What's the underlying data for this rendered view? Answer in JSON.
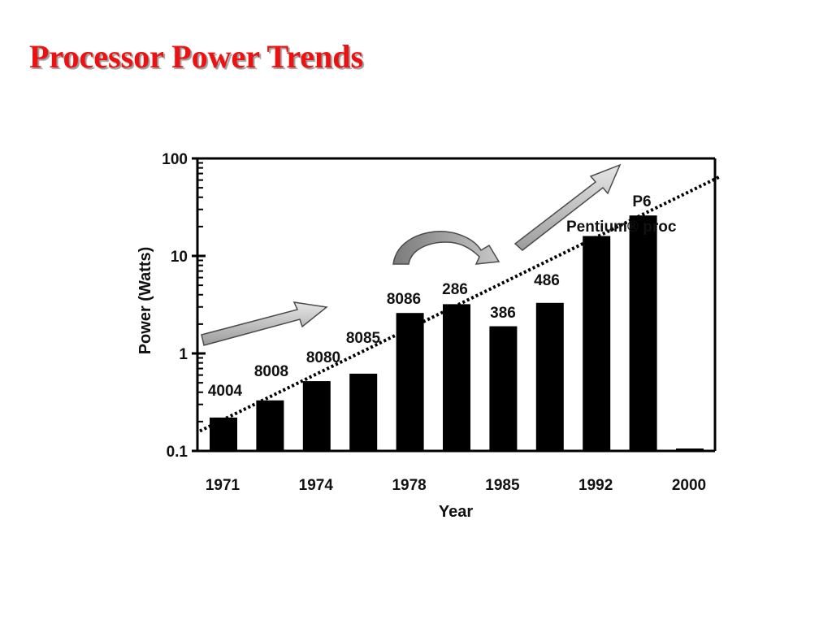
{
  "slide": {
    "title": "Processor Power Trends",
    "title_color": "#ee1111"
  },
  "chart_data": {
    "type": "bar",
    "xlabel": "Year",
    "ylabel": "Power (Watts)",
    "yscale": "log",
    "ylim": [
      0.1,
      100
    ],
    "y_ticks": [
      {
        "value": 100,
        "label": "100"
      },
      {
        "value": 10,
        "label": "10"
      },
      {
        "value": 1,
        "label": "1"
      },
      {
        "value": 0.1,
        "label": "0.1"
      }
    ],
    "x_tick_labels": [
      "1971",
      "1974",
      "1978",
      "1985",
      "1992",
      "2000"
    ],
    "bars": [
      {
        "label": "4004",
        "value": 0.22
      },
      {
        "label": "8008",
        "value": 0.33
      },
      {
        "label": "8080",
        "value": 0.52
      },
      {
        "label": "8085",
        "value": 0.62
      },
      {
        "label": "8086",
        "value": 2.6
      },
      {
        "label": "286",
        "value": 3.2
      },
      {
        "label": "386",
        "value": 1.9
      },
      {
        "label": "486",
        "value": 3.3
      },
      {
        "label": "Pentium® proc",
        "value": 16
      },
      {
        "label": "P6",
        "value": 26
      }
    ],
    "trend_line": {
      "style": "dotted",
      "from": 0.16,
      "to": 65
    },
    "bar_color": "#000000",
    "arrow_color": "#b8b8b8",
    "grid": false,
    "legend": "none"
  }
}
